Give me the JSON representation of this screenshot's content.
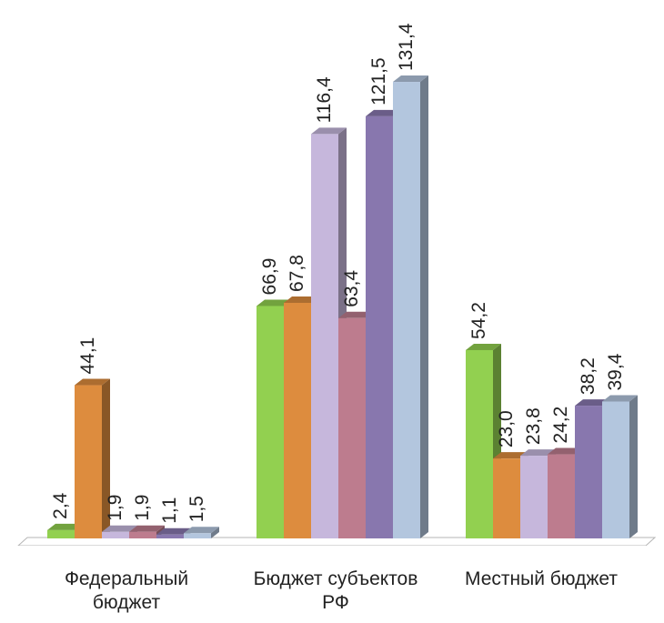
{
  "chart_data": {
    "type": "bar",
    "style": "3d-clustered-column",
    "categories": [
      "Федеральный\nбюджет",
      "Бюджет субъектов\nРФ",
      "Местный бюджет"
    ],
    "series": [
      {
        "values": [
          2.4,
          66.9,
          54.2
        ],
        "labels": [
          "2,4",
          "66,9",
          "54,2"
        ],
        "color": "#92d050"
      },
      {
        "values": [
          44.1,
          67.8,
          23.0
        ],
        "labels": [
          "44,1",
          "67,8",
          "23,0"
        ],
        "color": "#dd8c3e"
      },
      {
        "values": [
          1.9,
          116.4,
          23.8
        ],
        "labels": [
          "1,9",
          "116,4",
          "23,8"
        ],
        "color": "#c6b7dc"
      },
      {
        "values": [
          1.9,
          63.4,
          24.2
        ],
        "labels": [
          "1,9",
          "63,4",
          "24,2"
        ],
        "color": "#bd7c8e"
      },
      {
        "values": [
          1.1,
          121.5,
          38.2
        ],
        "labels": [
          "1,1",
          "121,5",
          "38,2"
        ],
        "color": "#8877ae"
      },
      {
        "values": [
          1.5,
          131.4,
          39.4
        ],
        "labels": [
          "1,5",
          "131,4",
          "39,4"
        ],
        "color": "#b3c6de"
      }
    ],
    "xlabel": "",
    "ylabel": "",
    "legend": "none",
    "grid": false
  }
}
